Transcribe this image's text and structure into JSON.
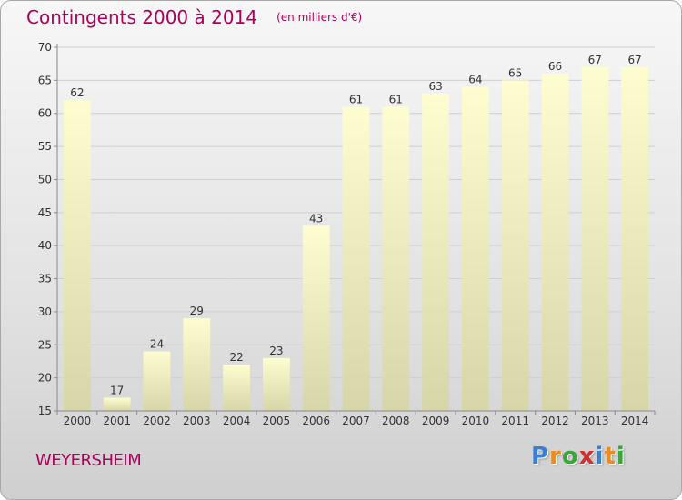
{
  "chart_data": {
    "type": "bar",
    "title": "Contingents 2000 à 2014",
    "unit": "(en milliers d'€)",
    "categories": [
      "2000",
      "2001",
      "2002",
      "2003",
      "2004",
      "2005",
      "2006",
      "2007",
      "2008",
      "2009",
      "2010",
      "2011",
      "2012",
      "2013",
      "2014"
    ],
    "values": [
      62,
      17,
      24,
      29,
      22,
      23,
      43,
      61,
      61,
      63,
      64,
      65,
      66,
      67,
      67
    ],
    "ylim": [
      15,
      70
    ],
    "yticks": [
      15,
      20,
      25,
      30,
      35,
      40,
      45,
      50,
      55,
      60,
      65,
      70
    ],
    "grid": true,
    "legend": "none"
  },
  "footer": {
    "commune": "WEYERSHEIM",
    "logo_text": "Proxiti"
  },
  "colors": {
    "title": "#b0005b",
    "bar_top": "#fdfdd0",
    "bar_bottom": "#d6d6a8",
    "grid": "#cfcfcf",
    "axis": "#888888",
    "text": "#333333",
    "logo": [
      "#3a7fd5",
      "#f08a1c",
      "#3aa53a",
      "#d03030",
      "#3a7fd5",
      "#f08a1c",
      "#3aa53a"
    ]
  }
}
